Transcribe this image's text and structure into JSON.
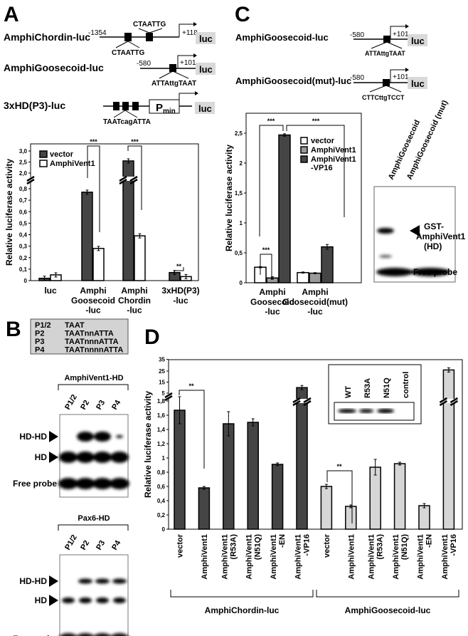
{
  "panels": {
    "A": "A",
    "B": "B",
    "C": "C",
    "D": "D"
  },
  "panelA": {
    "constructs": [
      {
        "name": "AmphiChordin-luc",
        "start": "-1354",
        "end": "+118",
        "site1": "CTAATTG",
        "site2": "CTAATTG",
        "reporter": "luc"
      },
      {
        "name": "AmphiGoosecoid-luc",
        "start": "-580",
        "end": "+101",
        "site1": "ATTAttgTAAT",
        "reporter": "luc"
      },
      {
        "name": "3xHD(P3)-luc",
        "site1": "TAATcagATTA",
        "promoter": "P",
        "promoter_sub": "min",
        "reporter": "luc"
      }
    ]
  },
  "panelB": {
    "table": [
      [
        "P1/2",
        "TAAT"
      ],
      [
        "P2",
        "TAATnnATTA"
      ],
      [
        "P3",
        "TAATnnnATTA"
      ],
      [
        "P4",
        "TAATnnnnATTA"
      ]
    ],
    "gels": [
      {
        "title": "AmphiVent1-HD",
        "lanes": [
          "P1/2",
          "P2",
          "P3",
          "P4"
        ],
        "labels": [
          "HD-HD",
          "HD",
          "Free probe"
        ]
      },
      {
        "title": "Pax6-HD",
        "lanes": [
          "P1/2",
          "P2",
          "P3",
          "P4"
        ],
        "labels": [
          "HD-HD",
          "HD",
          "Free probe"
        ]
      }
    ]
  },
  "panelC": {
    "constructs": [
      {
        "name": "AmphiGoosecoid-luc",
        "start": "-580",
        "end": "+101",
        "site1": "ATTAttgTAAT",
        "reporter": "luc"
      },
      {
        "name": "AmphiGoosecoid(mut)-luc",
        "start": "-580",
        "end": "+101",
        "site1": "CTTCttgTCCT",
        "reporter": "luc"
      }
    ],
    "gel": {
      "lanes": [
        "AmphiGoosecoid",
        "AmphiGoosecoid (mut)"
      ],
      "band_label_1": "GST-",
      "band_label_2": "AmphiVent1",
      "band_label_3": "(HD)",
      "free_probe": "Free probe"
    }
  },
  "panelD": {
    "inset": {
      "lanes": [
        "WT",
        "R53A",
        "N51Q",
        "control"
      ]
    },
    "groups": [
      "AmphiChordin-luc",
      "AmphiGoosecoid-luc"
    ]
  },
  "colors": {
    "dark": "#454545",
    "gray": "#9a9a9a",
    "light": "#d6d6d6",
    "white": "#ffffff",
    "luc_box": "#d9d9d9",
    "table_bg": "#d3d3d3"
  },
  "chart_data": [
    {
      "id": "A",
      "type": "bar",
      "ylabel": "Relative luciferase activity",
      "categories": [
        "luc",
        "Amphi\nGoosecoid\n-luc",
        "Amphi\nChordin\n-luc",
        "3xHD(P3)\n-luc"
      ],
      "series": [
        {
          "name": "vector",
          "values": [
            0.02,
            0.77,
            2.55,
            0.07
          ],
          "errors": [
            0.01,
            0.01,
            0.03,
            0.01
          ],
          "color": "#454545"
        },
        {
          "name": "AmphiVent1",
          "values": [
            0.05,
            0.28,
            0.39,
            0.035
          ],
          "errors": [
            0.01,
            0.01,
            0.02,
            0.01
          ],
          "color": "#ffffff"
        }
      ],
      "ylim_lower": [
        0,
        0.8
      ],
      "ylim_upper": [
        2.0,
        3.0
      ],
      "axis_break": true,
      "yticks_lower": [
        "0",
        "0,1",
        "0,2",
        "0,3",
        "0,4",
        "0,5",
        "0,6",
        "0,7",
        "0,8"
      ],
      "yticks_upper": [
        "2,0",
        "2,5",
        "3,0"
      ],
      "legend_position": "top-left",
      "significance": [
        {
          "label": "***",
          "category": 1
        },
        {
          "label": "***",
          "category": 2
        },
        {
          "label": "**",
          "category": 3
        }
      ]
    },
    {
      "id": "C",
      "type": "bar",
      "ylabel": "Relative luciferase activity",
      "categories": [
        "Amphi\nGoosecoid\n-luc",
        "Amphi\nGoosecoid(mut)\n-luc"
      ],
      "series": [
        {
          "name": "vector",
          "values": [
            0.26,
            0.17
          ],
          "errors": [
            0.01,
            0.01
          ],
          "color": "#ffffff"
        },
        {
          "name": "AmphiVent1",
          "values": [
            0.08,
            0.16
          ],
          "errors": [
            0.02,
            0.01
          ],
          "color": "#9a9a9a"
        },
        {
          "name": "AmphiVent1\n-VP16",
          "values": [
            2.47,
            0.6
          ],
          "errors": [
            0.02,
            0.04
          ],
          "color": "#454545"
        }
      ],
      "ylim": [
        0,
        2.75
      ],
      "yticks": [
        "0",
        "0,5",
        "1",
        "1,5",
        "2",
        "2,5"
      ],
      "legend_position": "top-right",
      "significance": [
        {
          "label": "***"
        },
        {
          "label": "***"
        },
        {
          "label": "***"
        }
      ]
    },
    {
      "id": "D",
      "type": "bar",
      "ylabel": "Relative luciferase activity",
      "categories": [
        "vector",
        "AmphiVent1",
        "AmphiVent1\n(R53A)",
        "AmphiVent1\n(N51Q)",
        "AmphiVent1\n-EN",
        "AmphiVent1\n-VP16",
        "vector",
        "AmphiVent1",
        "AmphiVent1\n(R53A)",
        "AmphiVent1\n(N51Q)",
        "AmphiVent1\n-EN",
        "AmphiVent1\n-VP16"
      ],
      "values": [
        1.67,
        0.58,
        1.48,
        1.5,
        0.91,
        10,
        0.6,
        0.32,
        0.87,
        0.92,
        0.33,
        26
      ],
      "errors": [
        0.19,
        0.02,
        0.17,
        0.05,
        0.02,
        1,
        0.03,
        0.02,
        0.11,
        0.02,
        0.03,
        1
      ],
      "group_colors": [
        "#454545",
        "#d6d6d6"
      ],
      "ylim_lower": [
        0,
        1.8
      ],
      "ylim_upper": [
        5,
        35
      ],
      "axis_break": true,
      "yticks_lower": [
        "0",
        "0,2",
        "0,4",
        "0,6",
        "0,8",
        "1",
        "1,2",
        "1,4",
        "1,6",
        "1,8"
      ],
      "yticks_upper": [
        "5",
        "15",
        "25",
        "35"
      ],
      "significance": [
        {
          "label": "**"
        },
        {
          "label": "**"
        }
      ]
    }
  ]
}
